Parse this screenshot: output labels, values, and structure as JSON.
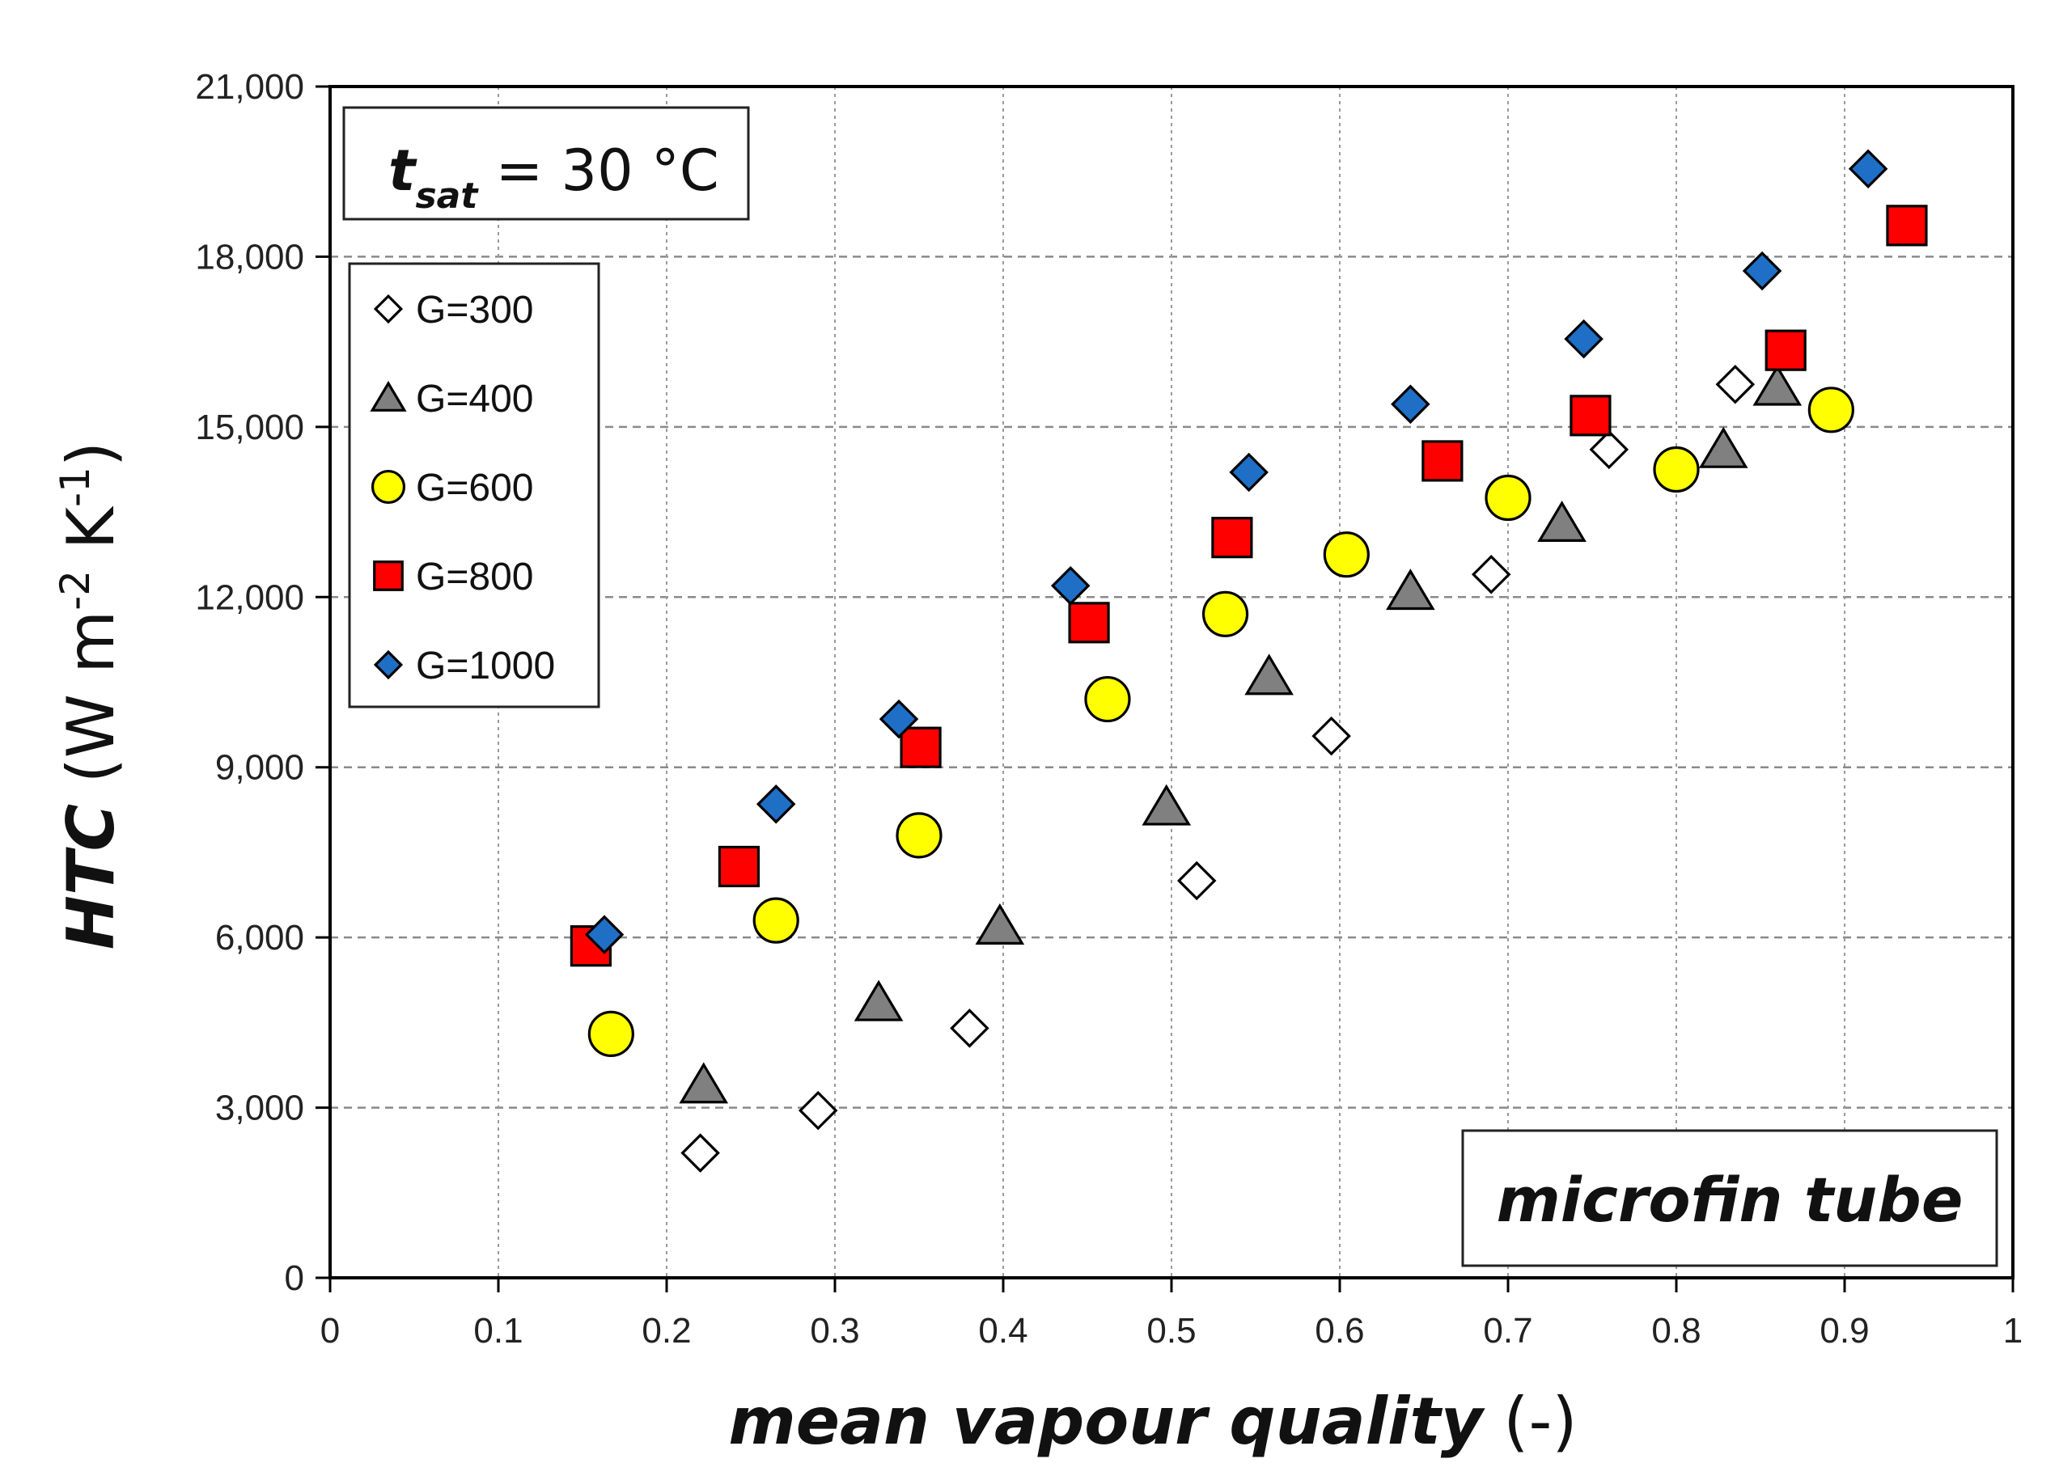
{
  "chart_data": {
    "type": "scatter",
    "xlabel": {
      "italic": "mean vapour quality",
      "plain": " (-)"
    },
    "ylabel": {
      "italic": "HTC",
      "plain": " (W m",
      "sup1": "-2",
      "plain2": " K",
      "sup2": "-1",
      "close": ")"
    },
    "xlim": [
      0,
      1
    ],
    "ylim": [
      0,
      21000
    ],
    "xticks": [
      0,
      0.1,
      0.2,
      0.3,
      0.4,
      0.5,
      0.6,
      0.7,
      0.8,
      0.9,
      1
    ],
    "xtick_labels": [
      "0",
      "0.1",
      "0.2",
      "0.3",
      "0.4",
      "0.5",
      "0.6",
      "0.7",
      "0.8",
      "0.9",
      "1"
    ],
    "yticks": [
      0,
      3000,
      6000,
      9000,
      12000,
      15000,
      18000,
      21000
    ],
    "ytick_labels": [
      "0",
      "3,000",
      "6,000",
      "9,000",
      "12,000",
      "15,000",
      "18,000",
      "21,000"
    ],
    "grid": true,
    "legend_position": "upper-left",
    "condition_box": {
      "t": "t",
      "sub": "sat",
      "rest": " = 30 °C"
    },
    "annotation": "microfin tube",
    "series": [
      {
        "name": "G=300",
        "marker": "diamond-open",
        "color": "#ffffff",
        "x": [
          0.22,
          0.29,
          0.38,
          0.515,
          0.595,
          0.69,
          0.76,
          0.835
        ],
        "y": [
          2200,
          2950,
          4400,
          7000,
          9550,
          12400,
          14600,
          15750
        ]
      },
      {
        "name": "G=400",
        "marker": "triangle",
        "color": "#808080",
        "x": [
          0.222,
          0.326,
          0.398,
          0.497,
          0.558,
          0.642,
          0.732,
          0.828,
          0.86
        ],
        "y": [
          3400,
          4850,
          6200,
          8300,
          10600,
          12100,
          13300,
          14600,
          15700
        ]
      },
      {
        "name": "G=600",
        "marker": "circle",
        "color": "#ffff00",
        "x": [
          0.167,
          0.265,
          0.35,
          0.462,
          0.532,
          0.604,
          0.7,
          0.8,
          0.892
        ],
        "y": [
          4300,
          6300,
          7800,
          10200,
          11700,
          12750,
          13750,
          14250,
          15300
        ]
      },
      {
        "name": "G=800",
        "marker": "square",
        "color": "#ff0000",
        "x": [
          0.155,
          0.243,
          0.351,
          0.451,
          0.536,
          0.661,
          0.749,
          0.865,
          0.937
        ],
        "y": [
          5850,
          7250,
          9350,
          11550,
          13050,
          14400,
          15200,
          16350,
          18550
        ]
      },
      {
        "name": "G=1000",
        "marker": "diamond",
        "color": "#1f6fc6",
        "x": [
          0.163,
          0.265,
          0.338,
          0.44,
          0.546,
          0.642,
          0.745,
          0.851,
          0.914
        ],
        "y": [
          6050,
          8350,
          9850,
          12200,
          14200,
          15400,
          16550,
          17750,
          19550
        ]
      }
    ]
  }
}
